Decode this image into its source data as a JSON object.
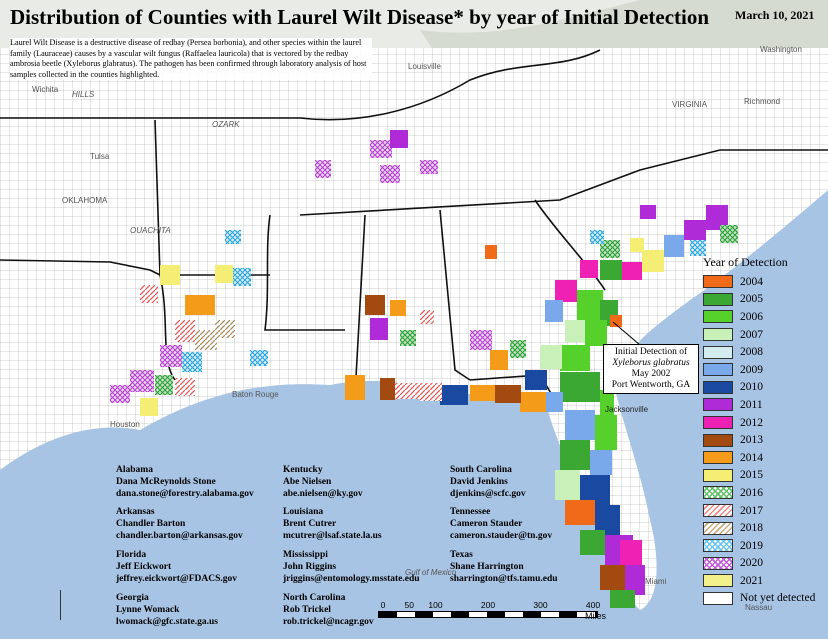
{
  "title": "Distribution of Counties with Laurel Wilt Disease* by year of Initial Detection",
  "date": "March 10, 2021",
  "description": "Laurel Wilt Disease is a destructive disease of redbay (Persea borbonia), and other species within the laurel family (Lauraceae) causes by a vascular wilt fungus (Raffaelea lauricola) that is vectored by the redbay ambrosia beetle (Xyleborus glabratus). The pathogen has been confirmed through laboratory analysis of host samples collected in the counties highlighted.",
  "legend": {
    "title": "Year of Detection",
    "items": [
      {
        "label": "2004",
        "color": "#f06a1a",
        "pattern": "solid"
      },
      {
        "label": "2005",
        "color": "#3aa832",
        "pattern": "solid"
      },
      {
        "label": "2006",
        "color": "#56d12b",
        "pattern": "solid"
      },
      {
        "label": "2007",
        "color": "#c8f0b8",
        "pattern": "solid"
      },
      {
        "label": "2008",
        "color": "#d5ecef",
        "pattern": "solid"
      },
      {
        "label": "2009",
        "color": "#79a9ea",
        "pattern": "solid"
      },
      {
        "label": "2010",
        "color": "#1a49a2",
        "pattern": "solid"
      },
      {
        "label": "2011",
        "color": "#b02bd8",
        "pattern": "solid"
      },
      {
        "label": "2012",
        "color": "#ef21b5",
        "pattern": "solid"
      },
      {
        "label": "2013",
        "color": "#a34a11",
        "pattern": "solid"
      },
      {
        "label": "2014",
        "color": "#f49b19",
        "pattern": "solid"
      },
      {
        "label": "2015",
        "color": "#f4ef74",
        "pattern": "solid"
      },
      {
        "label": "2016",
        "color": "#62c06a",
        "pattern": "crosshatch"
      },
      {
        "label": "2017",
        "color": "#ef8a8a",
        "pattern": "diagonal"
      },
      {
        "label": "2018",
        "color": "#c9ac82",
        "pattern": "diagonal"
      },
      {
        "label": "2019",
        "color": "#6cc7ee",
        "pattern": "crosshatch"
      },
      {
        "label": "2020",
        "color": "#c25bd6",
        "pattern": "crosshatch"
      },
      {
        "label": "2021",
        "color": "#f2f08a",
        "pattern": "solid"
      },
      {
        "label": "Not yet detected",
        "color": "#ffffff",
        "pattern": "solid"
      }
    ]
  },
  "callout": {
    "line1": "Initial Detection of",
    "line2": "Xyleborus glabratus",
    "line3": "May 2002",
    "line4": "Port Wentworth, GA"
  },
  "contacts": [
    {
      "state": "Alabama",
      "name": "Dana McReynolds Stone",
      "email": "dana.stone@forestry.alabama.gov"
    },
    {
      "state": "Arkansas",
      "name": "Chandler Barton",
      "email": "chandler.barton@arkansas.gov"
    },
    {
      "state": "Florida",
      "name": "Jeff Eickwort",
      "email": "jeffrey.eickwort@FDACS.gov"
    },
    {
      "state": "Georgia",
      "name": "Lynne Womack",
      "email": "lwomack@gfc.state.ga.us"
    },
    {
      "state": "Kentucky",
      "name": "Abe Nielsen",
      "email": "abe.nielsen@ky.gov"
    },
    {
      "state": "Louisiana",
      "name": "Brent Cutrer",
      "email": "mcutrer@lsaf.state.la.us"
    },
    {
      "state": "Mississippi",
      "name": "John Riggins",
      "email": "jriggins@entomology.msstate.edu"
    },
    {
      "state": "North Carolina",
      "name": "Rob Trickel",
      "email": "rob.trickel@ncagr.gov"
    },
    {
      "state": "South Carolina",
      "name": "David Jenkins",
      "email": "djenkins@scfc.gov"
    },
    {
      "state": "Tennessee",
      "name": "Cameron Stauder",
      "email": "cameron.stauder@tn.gov"
    },
    {
      "state": "Texas",
      "name": "Shane Harrington",
      "email": "sharrington@tfs.tamu.edu"
    }
  ],
  "scale": {
    "ticks": [
      "0",
      "50",
      "100",
      "200",
      "300",
      "400"
    ],
    "unit": "Miles"
  },
  "places": {
    "wichita": "Wichita",
    "hills": "HILLS",
    "tulsa": "Tulsa",
    "ozark": "OZARK",
    "oklahoma": "OKLAHOMA",
    "ouachita": "OUACHITA",
    "louisville": "Louisville",
    "virginia": "VIRGINIA",
    "richmond": "Richmond",
    "washington": "Washington",
    "jacksonville": "Jacksonville",
    "houston": "Houston",
    "nassau": "Nassau",
    "batonrouge": "Baton Rouge",
    "miami": "Miami",
    "gulf": "Gulf of Mexico"
  }
}
